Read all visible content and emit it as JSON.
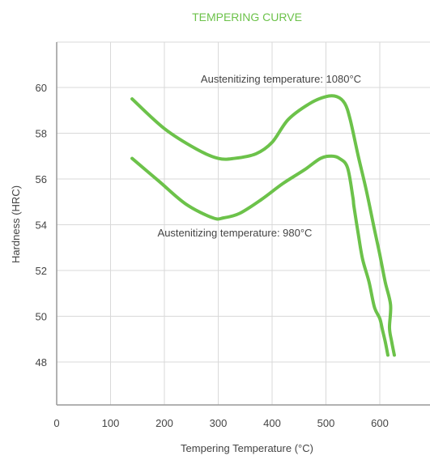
{
  "chart_data": {
    "type": "line",
    "title": "TEMPERING CURVE",
    "xlabel": "Tempering Temperature (°C)",
    "ylabel": "Hardness (HRC)",
    "xlim": [
      0,
      700
    ],
    "ylim": [
      46,
      62
    ],
    "xticks": [
      0,
      100,
      200,
      300,
      400,
      500,
      600
    ],
    "yticks": [
      48,
      50,
      52,
      54,
      56,
      58,
      60
    ],
    "grid": true,
    "series": [
      {
        "name": "Austenitizing temperature: 1080°C",
        "x": [
          140,
          200,
          260,
          300,
          330,
          370,
          400,
          430,
          470,
          500,
          520,
          535,
          545,
          560,
          575,
          590,
          600,
          610,
          620,
          618,
          622,
          627
        ],
        "y": [
          59.5,
          58.2,
          57.3,
          56.9,
          56.9,
          57.1,
          57.6,
          58.6,
          59.3,
          59.6,
          59.6,
          59.3,
          58.6,
          57.0,
          55.5,
          53.8,
          52.7,
          51.5,
          50.5,
          49.5,
          48.9,
          48.3
        ]
      },
      {
        "name": "Austenitizing temperature: 980°C",
        "x": [
          140,
          190,
          240,
          290,
          310,
          340,
          380,
          420,
          460,
          490,
          510,
          525,
          540,
          550,
          552,
          560,
          568,
          580,
          590,
          600,
          605,
          610,
          615
        ],
        "y": [
          56.9,
          55.9,
          54.9,
          54.3,
          54.3,
          54.5,
          55.1,
          55.8,
          56.4,
          56.9,
          57.0,
          56.9,
          56.5,
          55.2,
          54.8,
          53.6,
          52.5,
          51.5,
          50.4,
          49.9,
          49.4,
          48.9,
          48.3
        ]
      }
    ],
    "annotations": [
      "Austenitizing temperature: 1080°C",
      "Austenitizing temperature: 980°C"
    ],
    "colors": {
      "line": "#6cc24a",
      "title": "#6cc24a",
      "grid": "#d9d9d9",
      "axis": "#999999",
      "text": "#444444"
    }
  }
}
